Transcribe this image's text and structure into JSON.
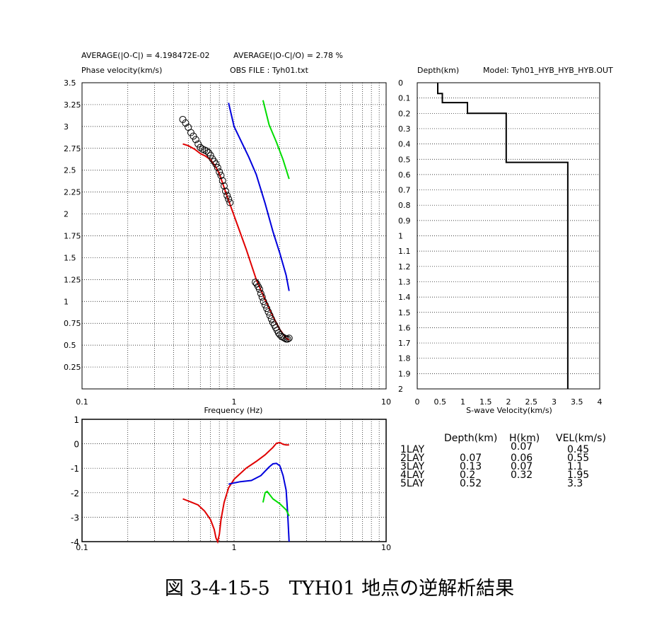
{
  "header": {
    "avg_oc": "AVERAGE(|O-C|) = 4.198472E-02",
    "avg_oco": "AVERAGE(|O-C|/O) = 2.78 %",
    "obs_file": "OBS FILE : Tyh01.txt"
  },
  "table": {
    "headers": [
      "Depth(km)",
      "H(km)",
      "VEL(km/s)"
    ],
    "rows": [
      {
        "label": "1LAY",
        "depth": "",
        "h": "0.07",
        "vel": "0.45"
      },
      {
        "label": "2LAY",
        "depth": "0.07",
        "h": "0.06",
        "vel": "0.55"
      },
      {
        "label": "3LAY",
        "depth": "0.13",
        "h": "0.07",
        "vel": "1.1"
      },
      {
        "label": "4LAY",
        "depth": "0.2",
        "h": "0.32",
        "vel": "1.95"
      },
      {
        "label": "5LAY",
        "depth": "0.52",
        "h": "",
        "vel": "3.3"
      }
    ]
  },
  "caption": "図 3-4-15-5　TYH01 地点の逆解析結果",
  "chart_data": [
    {
      "type": "scatter",
      "ylabel": "Phase velocity(km/s)",
      "xlabel": "Frequency (Hz)",
      "xscale": "log",
      "xlim": [
        0.1,
        10
      ],
      "ylim": [
        0,
        3.5
      ],
      "x_tick_labels": [
        "0.1",
        "1",
        "10"
      ],
      "y_tick_labels": [
        "0.25",
        "0.5",
        "0.75",
        "1",
        "1.25",
        "1.5",
        "1.75",
        "2",
        "2.25",
        "2.5",
        "2.75",
        "3",
        "3.25",
        "3.5"
      ],
      "observed": {
        "marker": "open-circle",
        "color": "#000000",
        "points": [
          [
            0.46,
            3.08
          ],
          [
            0.48,
            3.04
          ],
          [
            0.5,
            2.99
          ],
          [
            0.52,
            2.93
          ],
          [
            0.54,
            2.89
          ],
          [
            0.56,
            2.85
          ],
          [
            0.58,
            2.8
          ],
          [
            0.6,
            2.76
          ],
          [
            0.62,
            2.74
          ],
          [
            0.64,
            2.73
          ],
          [
            0.66,
            2.72
          ],
          [
            0.68,
            2.7
          ],
          [
            0.7,
            2.67
          ],
          [
            0.72,
            2.63
          ],
          [
            0.74,
            2.6
          ],
          [
            0.76,
            2.57
          ],
          [
            0.78,
            2.53
          ],
          [
            0.8,
            2.48
          ],
          [
            0.82,
            2.44
          ],
          [
            0.84,
            2.38
          ],
          [
            0.86,
            2.32
          ],
          [
            0.88,
            2.26
          ],
          [
            0.9,
            2.21
          ],
          [
            0.92,
            2.17
          ],
          [
            0.94,
            2.13
          ],
          [
            1.38,
            1.22
          ],
          [
            1.41,
            1.2
          ],
          [
            1.44,
            1.17
          ],
          [
            1.47,
            1.14
          ],
          [
            1.5,
            1.09
          ],
          [
            1.53,
            1.05
          ],
          [
            1.56,
            1.0
          ],
          [
            1.6,
            0.96
          ],
          [
            1.64,
            0.92
          ],
          [
            1.68,
            0.88
          ],
          [
            1.72,
            0.84
          ],
          [
            1.76,
            0.8
          ],
          [
            1.8,
            0.76
          ],
          [
            1.84,
            0.73
          ],
          [
            1.88,
            0.7
          ],
          [
            1.92,
            0.67
          ],
          [
            1.96,
            0.64
          ],
          [
            2.0,
            0.62
          ],
          [
            2.05,
            0.6
          ],
          [
            2.1,
            0.59
          ],
          [
            2.15,
            0.58
          ],
          [
            2.2,
            0.57
          ],
          [
            2.25,
            0.57
          ],
          [
            2.3,
            0.58
          ]
        ]
      },
      "series": [
        {
          "color": "#e00000",
          "x": [
            0.46,
            0.5,
            0.55,
            0.6,
            0.65,
            0.7,
            0.75,
            0.8,
            0.9,
            1.0,
            1.2,
            1.4,
            1.6,
            1.8,
            2.0,
            2.2,
            2.3
          ],
          "y": [
            2.8,
            2.78,
            2.74,
            2.69,
            2.66,
            2.62,
            2.55,
            2.46,
            2.2,
            1.98,
            1.6,
            1.25,
            1.02,
            0.83,
            0.68,
            0.58,
            0.56
          ]
        },
        {
          "color": "#0000dd",
          "x": [
            0.92,
            1.0,
            1.1,
            1.25,
            1.4,
            1.6,
            1.8,
            2.0,
            2.2,
            2.3
          ],
          "y": [
            3.27,
            3.0,
            2.85,
            2.65,
            2.45,
            2.12,
            1.8,
            1.55,
            1.3,
            1.12
          ]
        },
        {
          "color": "#00dd00",
          "x": [
            1.55,
            1.7,
            1.9,
            2.1,
            2.3
          ],
          "y": [
            3.3,
            3.02,
            2.82,
            2.62,
            2.4
          ]
        }
      ]
    },
    {
      "type": "line",
      "ylabel": "Depth(km)",
      "xlabel": "S-wave Velocity(km/s)",
      "title": "Model: Tyh01_HYB_HYB_HYB.OUT",
      "xlim": [
        0,
        4
      ],
      "ylim": [
        0,
        2
      ],
      "x_tick_labels": [
        "0",
        "0.5",
        "1",
        "1.5",
        "2",
        "2.5",
        "3",
        "3.5",
        "4"
      ],
      "y_tick_labels": [
        "0",
        "0.1",
        "0.2",
        "0.3",
        "0.4",
        "0.5",
        "0.6",
        "0.7",
        "0.8",
        "0.9",
        "1",
        "1.1",
        "1.2",
        "1.3",
        "1.4",
        "1.5",
        "1.6",
        "1.7",
        "1.8",
        "1.9",
        "2"
      ],
      "profile": {
        "velocity": [
          0.45,
          0.55,
          1.1,
          1.95,
          3.3
        ],
        "top_depth": [
          0,
          0.07,
          0.13,
          0.2,
          0.52
        ],
        "bottom_depth": 2.0
      }
    },
    {
      "type": "line",
      "xscale": "log",
      "xlim": [
        0.1,
        10
      ],
      "ylim": [
        -4,
        1
      ],
      "x_tick_labels": [
        "0.1",
        "1",
        "10"
      ],
      "y_tick_labels": [
        "1",
        "0",
        "-1",
        "-2",
        "-3",
        "-4"
      ],
      "series": [
        {
          "color": "#e00000",
          "x": [
            0.46,
            0.52,
            0.58,
            0.64,
            0.7,
            0.74,
            0.76,
            0.78,
            0.8,
            0.82,
            0.86,
            0.92,
            1.0,
            1.2,
            1.4,
            1.6,
            1.8,
            1.9,
            2.0,
            2.1,
            2.2,
            2.3
          ],
          "y": [
            -2.25,
            -2.38,
            -2.5,
            -2.75,
            -3.1,
            -3.5,
            -3.85,
            -4.0,
            -3.7,
            -3.1,
            -2.4,
            -1.8,
            -1.45,
            -1.0,
            -0.72,
            -0.45,
            -0.15,
            0.02,
            0.05,
            -0.02,
            -0.05,
            -0.05
          ]
        },
        {
          "color": "#0000dd",
          "x": [
            0.92,
            1.0,
            1.1,
            1.3,
            1.5,
            1.7,
            1.8,
            1.9,
            2.0,
            2.1,
            2.2,
            2.25,
            2.3
          ],
          "y": [
            -1.65,
            -1.6,
            -1.55,
            -1.5,
            -1.3,
            -0.95,
            -0.82,
            -0.8,
            -0.9,
            -1.3,
            -1.9,
            -2.8,
            -4.0
          ]
        },
        {
          "color": "#00dd00",
          "x": [
            1.55,
            1.6,
            1.65,
            1.7,
            1.8,
            2.0,
            2.2,
            2.3
          ],
          "y": [
            -2.4,
            -2.0,
            -1.95,
            -2.05,
            -2.25,
            -2.45,
            -2.7,
            -2.95
          ]
        }
      ]
    }
  ]
}
